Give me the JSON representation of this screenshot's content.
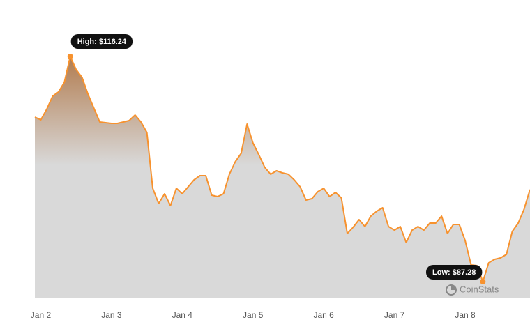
{
  "chart_data": {
    "type": "area",
    "high_label": "High: $116.24",
    "low_label": "Low: $87.28",
    "watermark": "CoinStats",
    "color": "#f7922e",
    "categories": [
      null,
      "Jan 2",
      null,
      null,
      null,
      null,
      null,
      null,
      null,
      null,
      null,
      null,
      null,
      "Jan 3",
      null,
      null,
      null,
      null,
      null,
      null,
      null,
      null,
      null,
      null,
      null,
      "Jan 4",
      null,
      null,
      null,
      null,
      null,
      null,
      null,
      null,
      null,
      null,
      null,
      "Jan 5",
      null,
      null,
      null,
      null,
      null,
      null,
      null,
      null,
      null,
      null,
      null,
      "Jan 6",
      null,
      null,
      null,
      null,
      null,
      null,
      null,
      null,
      null,
      null,
      null,
      "Jan 7",
      null,
      null,
      null,
      null,
      null,
      null,
      null,
      null,
      null,
      null,
      null,
      "Jan 8",
      null,
      null,
      null,
      null,
      null,
      null,
      null,
      null,
      null,
      null,
      null
    ],
    "values": [
      108.44,
      108.08,
      109.43,
      111.13,
      111.67,
      112.92,
      116.24,
      114.54,
      113.55,
      111.4,
      109.61,
      107.81,
      107.72,
      107.63,
      107.63,
      107.81,
      107.99,
      108.71,
      107.81,
      106.47,
      99.29,
      97.32,
      98.58,
      97.05,
      99.29,
      98.58,
      99.47,
      100.37,
      100.91,
      100.91,
      98.4,
      98.22,
      98.58,
      101.09,
      102.7,
      103.78,
      107.54,
      105.12,
      103.6,
      101.98,
      101.09,
      101.54,
      101.27,
      101.09,
      100.37,
      99.47,
      97.77,
      97.95,
      98.85,
      99.29,
      98.22,
      98.76,
      98.04,
      93.47,
      94.27,
      95.26,
      94.36,
      95.71,
      96.34,
      96.78,
      94.36,
      93.91,
      94.36,
      92.3,
      93.91,
      94.36,
      93.91,
      94.81,
      94.81,
      95.71,
      93.47,
      94.63,
      94.63,
      92.57,
      89.43,
      89.34,
      87.28,
      89.7,
      90.15,
      90.33,
      90.78,
      93.74,
      94.81,
      96.6,
      99.12
    ],
    "ylim": [
      85.13,
      123.5
    ]
  }
}
